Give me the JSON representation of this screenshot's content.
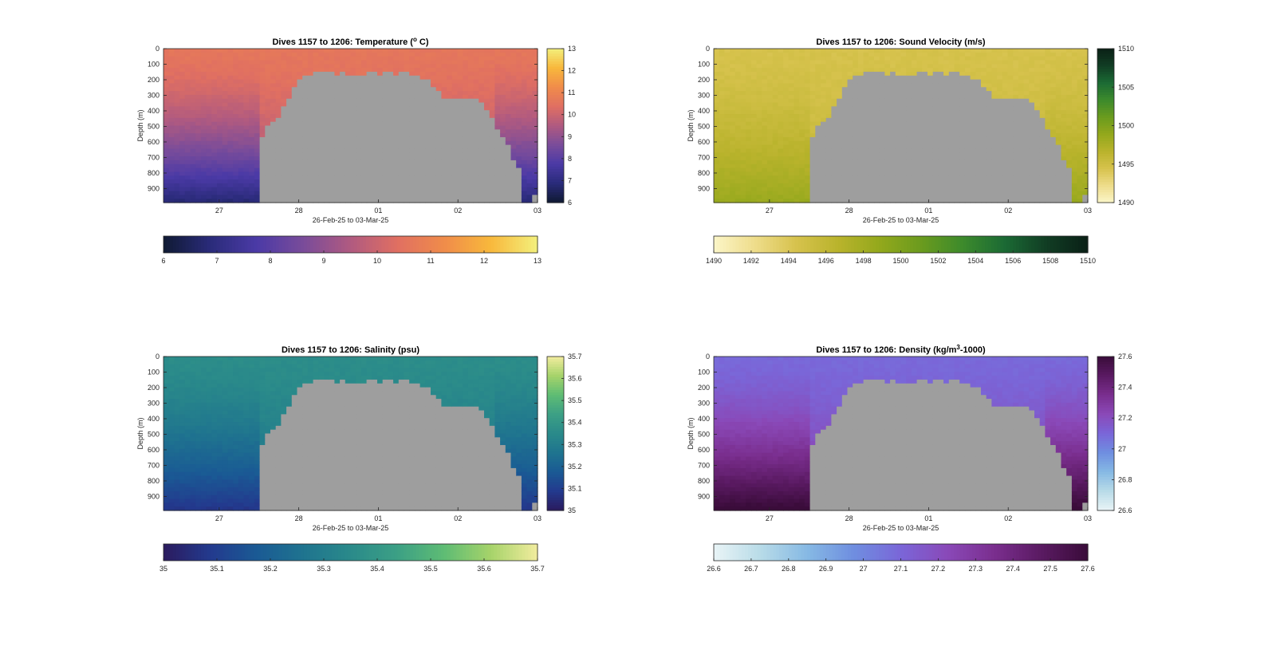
{
  "figure": {
    "background": "#ffffff",
    "land_color": "#9e9e9e"
  },
  "chart_data": [
    {
      "type": "heatmap",
      "variable": "temperature",
      "title": "Dives 1157 to 1206: Temperature",
      "title_unit_prefix": " (",
      "title_unit_sup": "o",
      "title_unit_suffix": " C)",
      "xlabel": "26-Feb-25 to 03-Mar-25",
      "ylabel": "Depth (m)",
      "x_ticks": [
        "27",
        "28",
        "01",
        "02",
        "03"
      ],
      "y_ticks": [
        "0",
        "100",
        "200",
        "300",
        "400",
        "500",
        "600",
        "700",
        "800",
        "900"
      ],
      "ylim": [
        0,
        990
      ],
      "clim": [
        6,
        13
      ],
      "side_colorbar_ticks": [
        "6",
        "7",
        "8",
        "9",
        "10",
        "11",
        "12",
        "13"
      ],
      "bottom_colorbar_ticks": [
        "6",
        "7",
        "8",
        "9",
        "10",
        "11",
        "12",
        "13"
      ],
      "colormap": [
        "#0f1a33",
        "#2a2b7a",
        "#4b3aa6",
        "#7a4c9a",
        "#b05a80",
        "#e06f62",
        "#f08c4a",
        "#f8b83c",
        "#f3f07c"
      ],
      "surface_value": 10.6,
      "deep_value": 8.2,
      "seafloor_depth": [
        990,
        990,
        990,
        990,
        990,
        990,
        990,
        990,
        990,
        990,
        990,
        990,
        990,
        990,
        990,
        990,
        990,
        990,
        580,
        500,
        460,
        440,
        380,
        310,
        250,
        200,
        180,
        165,
        160,
        160,
        160,
        160,
        165,
        160,
        165,
        165,
        165,
        165,
        160,
        160,
        165,
        160,
        160,
        165,
        160,
        160,
        165,
        170,
        190,
        210,
        240,
        280,
        310,
        330,
        320,
        310,
        310,
        310,
        320,
        340,
        390,
        440,
        520,
        580,
        620,
        720,
        760,
        990,
        990,
        930
      ]
    },
    {
      "type": "heatmap",
      "variable": "sound_velocity",
      "title": "Dives 1157 to 1206: Sound Velocity (m/s)",
      "xlabel": "26-Feb-25 to 03-Mar-25",
      "ylabel": "Depth (m)",
      "x_ticks": [
        "27",
        "28",
        "01",
        "02",
        "03"
      ],
      "y_ticks": [
        "0",
        "100",
        "200",
        "300",
        "400",
        "500",
        "600",
        "700",
        "800",
        "900"
      ],
      "ylim": [
        0,
        990
      ],
      "clim": [
        1490,
        1510
      ],
      "side_colorbar_ticks": [
        "1490",
        "1495",
        "1500",
        "1505",
        "1510"
      ],
      "bottom_colorbar_ticks": [
        "1490",
        "1492",
        "1494",
        "1496",
        "1498",
        "1500",
        "1502",
        "1504",
        "1506",
        "1508",
        "1510"
      ],
      "colormap": [
        "#fbf6c8",
        "#eedc8a",
        "#d6c24c",
        "#b9b32c",
        "#93a81c",
        "#6a9b1e",
        "#3c8a2c",
        "#1b6a34",
        "#113d24",
        "#0a2016"
      ],
      "surface_value": 1494.5,
      "deep_value": 1497.0,
      "seafloor_depth": [
        990,
        990,
        990,
        990,
        990,
        990,
        990,
        990,
        990,
        990,
        990,
        990,
        990,
        990,
        990,
        990,
        990,
        990,
        580,
        500,
        460,
        440,
        380,
        310,
        250,
        200,
        180,
        165,
        160,
        160,
        160,
        160,
        165,
        160,
        165,
        165,
        165,
        165,
        160,
        160,
        165,
        160,
        160,
        165,
        160,
        160,
        165,
        170,
        190,
        210,
        240,
        280,
        310,
        330,
        320,
        310,
        310,
        310,
        320,
        340,
        390,
        440,
        520,
        580,
        620,
        720,
        760,
        990,
        990,
        930
      ]
    },
    {
      "type": "heatmap",
      "variable": "salinity",
      "title": "Dives 1157 to 1206: Salinity (psu)",
      "xlabel": "26-Feb-25 to 03-Mar-25",
      "ylabel": "Depth (m)",
      "x_ticks": [
        "27",
        "28",
        "01",
        "02",
        "03"
      ],
      "y_ticks": [
        "0",
        "100",
        "200",
        "300",
        "400",
        "500",
        "600",
        "700",
        "800",
        "900"
      ],
      "ylim": [
        0,
        990
      ],
      "clim": [
        35,
        35.7
      ],
      "side_colorbar_ticks": [
        "35",
        "35.1",
        "35.2",
        "35.3",
        "35.4",
        "35.5",
        "35.6",
        "35.7"
      ],
      "bottom_colorbar_ticks": [
        "35",
        "35.1",
        "35.2",
        "35.3",
        "35.4",
        "35.5",
        "35.6",
        "35.7"
      ],
      "colormap": [
        "#2b1b5e",
        "#233a8e",
        "#1a5a94",
        "#1f748f",
        "#2a8a8a",
        "#3ca085",
        "#5ebc74",
        "#a6d36a",
        "#f2ec9e"
      ],
      "surface_value": 35.36,
      "deep_value": 35.18,
      "seafloor_depth": [
        990,
        990,
        990,
        990,
        990,
        990,
        990,
        990,
        990,
        990,
        990,
        990,
        990,
        990,
        990,
        990,
        990,
        990,
        580,
        500,
        460,
        440,
        380,
        310,
        250,
        200,
        180,
        165,
        160,
        160,
        160,
        160,
        165,
        160,
        165,
        165,
        165,
        165,
        160,
        160,
        165,
        160,
        160,
        165,
        160,
        160,
        165,
        170,
        190,
        210,
        240,
        280,
        310,
        330,
        320,
        310,
        310,
        310,
        320,
        340,
        390,
        440,
        520,
        580,
        620,
        720,
        760,
        990,
        990,
        930
      ]
    },
    {
      "type": "heatmap",
      "variable": "density",
      "title": "Dives 1157 to 1206: Density",
      "title_unit_prefix": " (kg/m",
      "title_unit_sup": "3",
      "title_unit_suffix": "-1000)",
      "xlabel": "26-Feb-25 to 03-Mar-25",
      "ylabel": "Depth (m)",
      "x_ticks": [
        "27",
        "28",
        "01",
        "02",
        "03"
      ],
      "y_ticks": [
        "0",
        "100",
        "200",
        "300",
        "400",
        "500",
        "600",
        "700",
        "800",
        "900"
      ],
      "ylim": [
        0,
        990
      ],
      "clim": [
        26.6,
        27.6
      ],
      "side_colorbar_ticks": [
        "26.6",
        "26.8",
        "27",
        "27.2",
        "27.4",
        "27.6"
      ],
      "bottom_colorbar_ticks": [
        "26.6",
        "26.7",
        "26.8",
        "26.9",
        "27",
        "27.1",
        "27.2",
        "27.3",
        "27.4",
        "27.5",
        "27.6"
      ],
      "colormap": [
        "#e9f4f6",
        "#b8dbe8",
        "#86b9e4",
        "#6f8ee0",
        "#7a66d8",
        "#8a49b8",
        "#7a2e8e",
        "#5a1a62",
        "#3a0c3a"
      ],
      "surface_value": 27.09,
      "deep_value": 27.42,
      "seafloor_depth": [
        990,
        990,
        990,
        990,
        990,
        990,
        990,
        990,
        990,
        990,
        990,
        990,
        990,
        990,
        990,
        990,
        990,
        990,
        580,
        500,
        460,
        440,
        380,
        310,
        250,
        200,
        180,
        165,
        160,
        160,
        160,
        160,
        165,
        160,
        165,
        165,
        165,
        165,
        160,
        160,
        165,
        160,
        160,
        165,
        160,
        160,
        165,
        170,
        190,
        210,
        240,
        280,
        310,
        330,
        320,
        310,
        310,
        310,
        320,
        340,
        390,
        440,
        520,
        580,
        620,
        720,
        760,
        990,
        990,
        930
      ]
    }
  ]
}
